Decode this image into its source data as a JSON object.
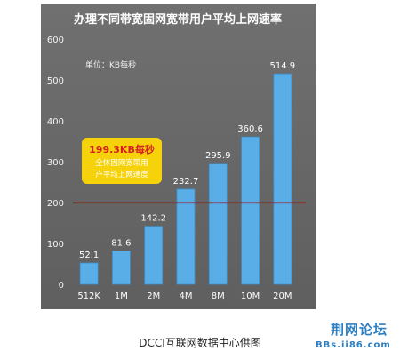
{
  "chart_data": {
    "type": "bar",
    "title": "办理不同带宽固网宽带用户平均上网速率",
    "unit_note": "单位：KB每秒",
    "categories": [
      "512K",
      "1M",
      "2M",
      "4M",
      "8M",
      "10M",
      "20M"
    ],
    "values": [
      52.1,
      81.6,
      142.2,
      232.7,
      295.9,
      360.6,
      514.9
    ],
    "value_labels": [
      "52.1",
      "81.6",
      "142.2",
      "232.7",
      "295.9",
      "360.6",
      "514.9"
    ],
    "y_ticks": [
      "0",
      "100",
      "200",
      "300",
      "400",
      "500",
      "600"
    ],
    "ylim": [
      0,
      600
    ],
    "reference_line": {
      "value": 199.3
    },
    "annotation": {
      "headline": "199.3KB每秒",
      "line1": "全体固网宽带用",
      "line2": "户平均上网速度"
    },
    "colors": {
      "panel": "#666666",
      "bar": "#5aaee8",
      "bar_edge": "#3d8fcc",
      "reference_line": "#8b1a1a",
      "annotation_box": "#f5d20a",
      "annotation_headline": "#d42020",
      "text": "#ffffff"
    }
  },
  "caption": "DCCI互联网数据中心供图",
  "watermark": {
    "name": "荆网论坛",
    "url": "BBs.ii86.com"
  }
}
